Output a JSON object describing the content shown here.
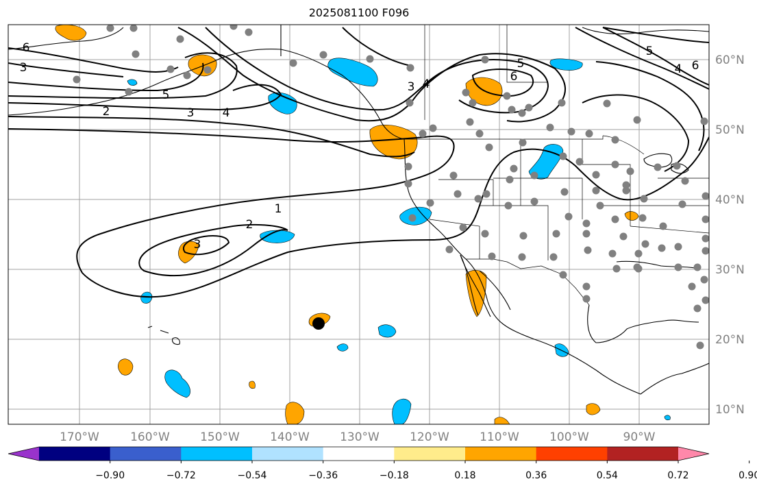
{
  "title": "2025081100 F096",
  "lon_ticks": [
    "170°W",
    "160°W",
    "150°W",
    "140°W",
    "130°W",
    "120°W",
    "110°W",
    "100°W",
    "90°W"
  ],
  "lat_ticks": [
    "60°N",
    "50°N",
    "40°N",
    "30°N",
    "20°N",
    "10°N"
  ],
  "colorbar": {
    "colors": [
      "#9933cc",
      "#000080",
      "#3a5fcd",
      "#00bfff",
      "#b0e2ff",
      "#ffffff",
      "#ffec8b",
      "#ffa500",
      "#ff4000",
      "#b22222",
      "#ff88aa"
    ],
    "tick_labels": [
      "−0.90",
      "−0.72",
      "−0.54",
      "−0.36",
      "−0.18",
      "0.18",
      "0.36",
      "0.54",
      "0.72",
      "0.90"
    ]
  },
  "contour_labels": [
    "6",
    "3",
    "5",
    "2",
    "3",
    "4",
    "3",
    "4",
    "5",
    "6",
    "5",
    "4",
    "6",
    "1",
    "2",
    "3"
  ],
  "colors": {
    "axis_text": "#808080",
    "grid": "#a0a0a0",
    "station": "#808080"
  }
}
